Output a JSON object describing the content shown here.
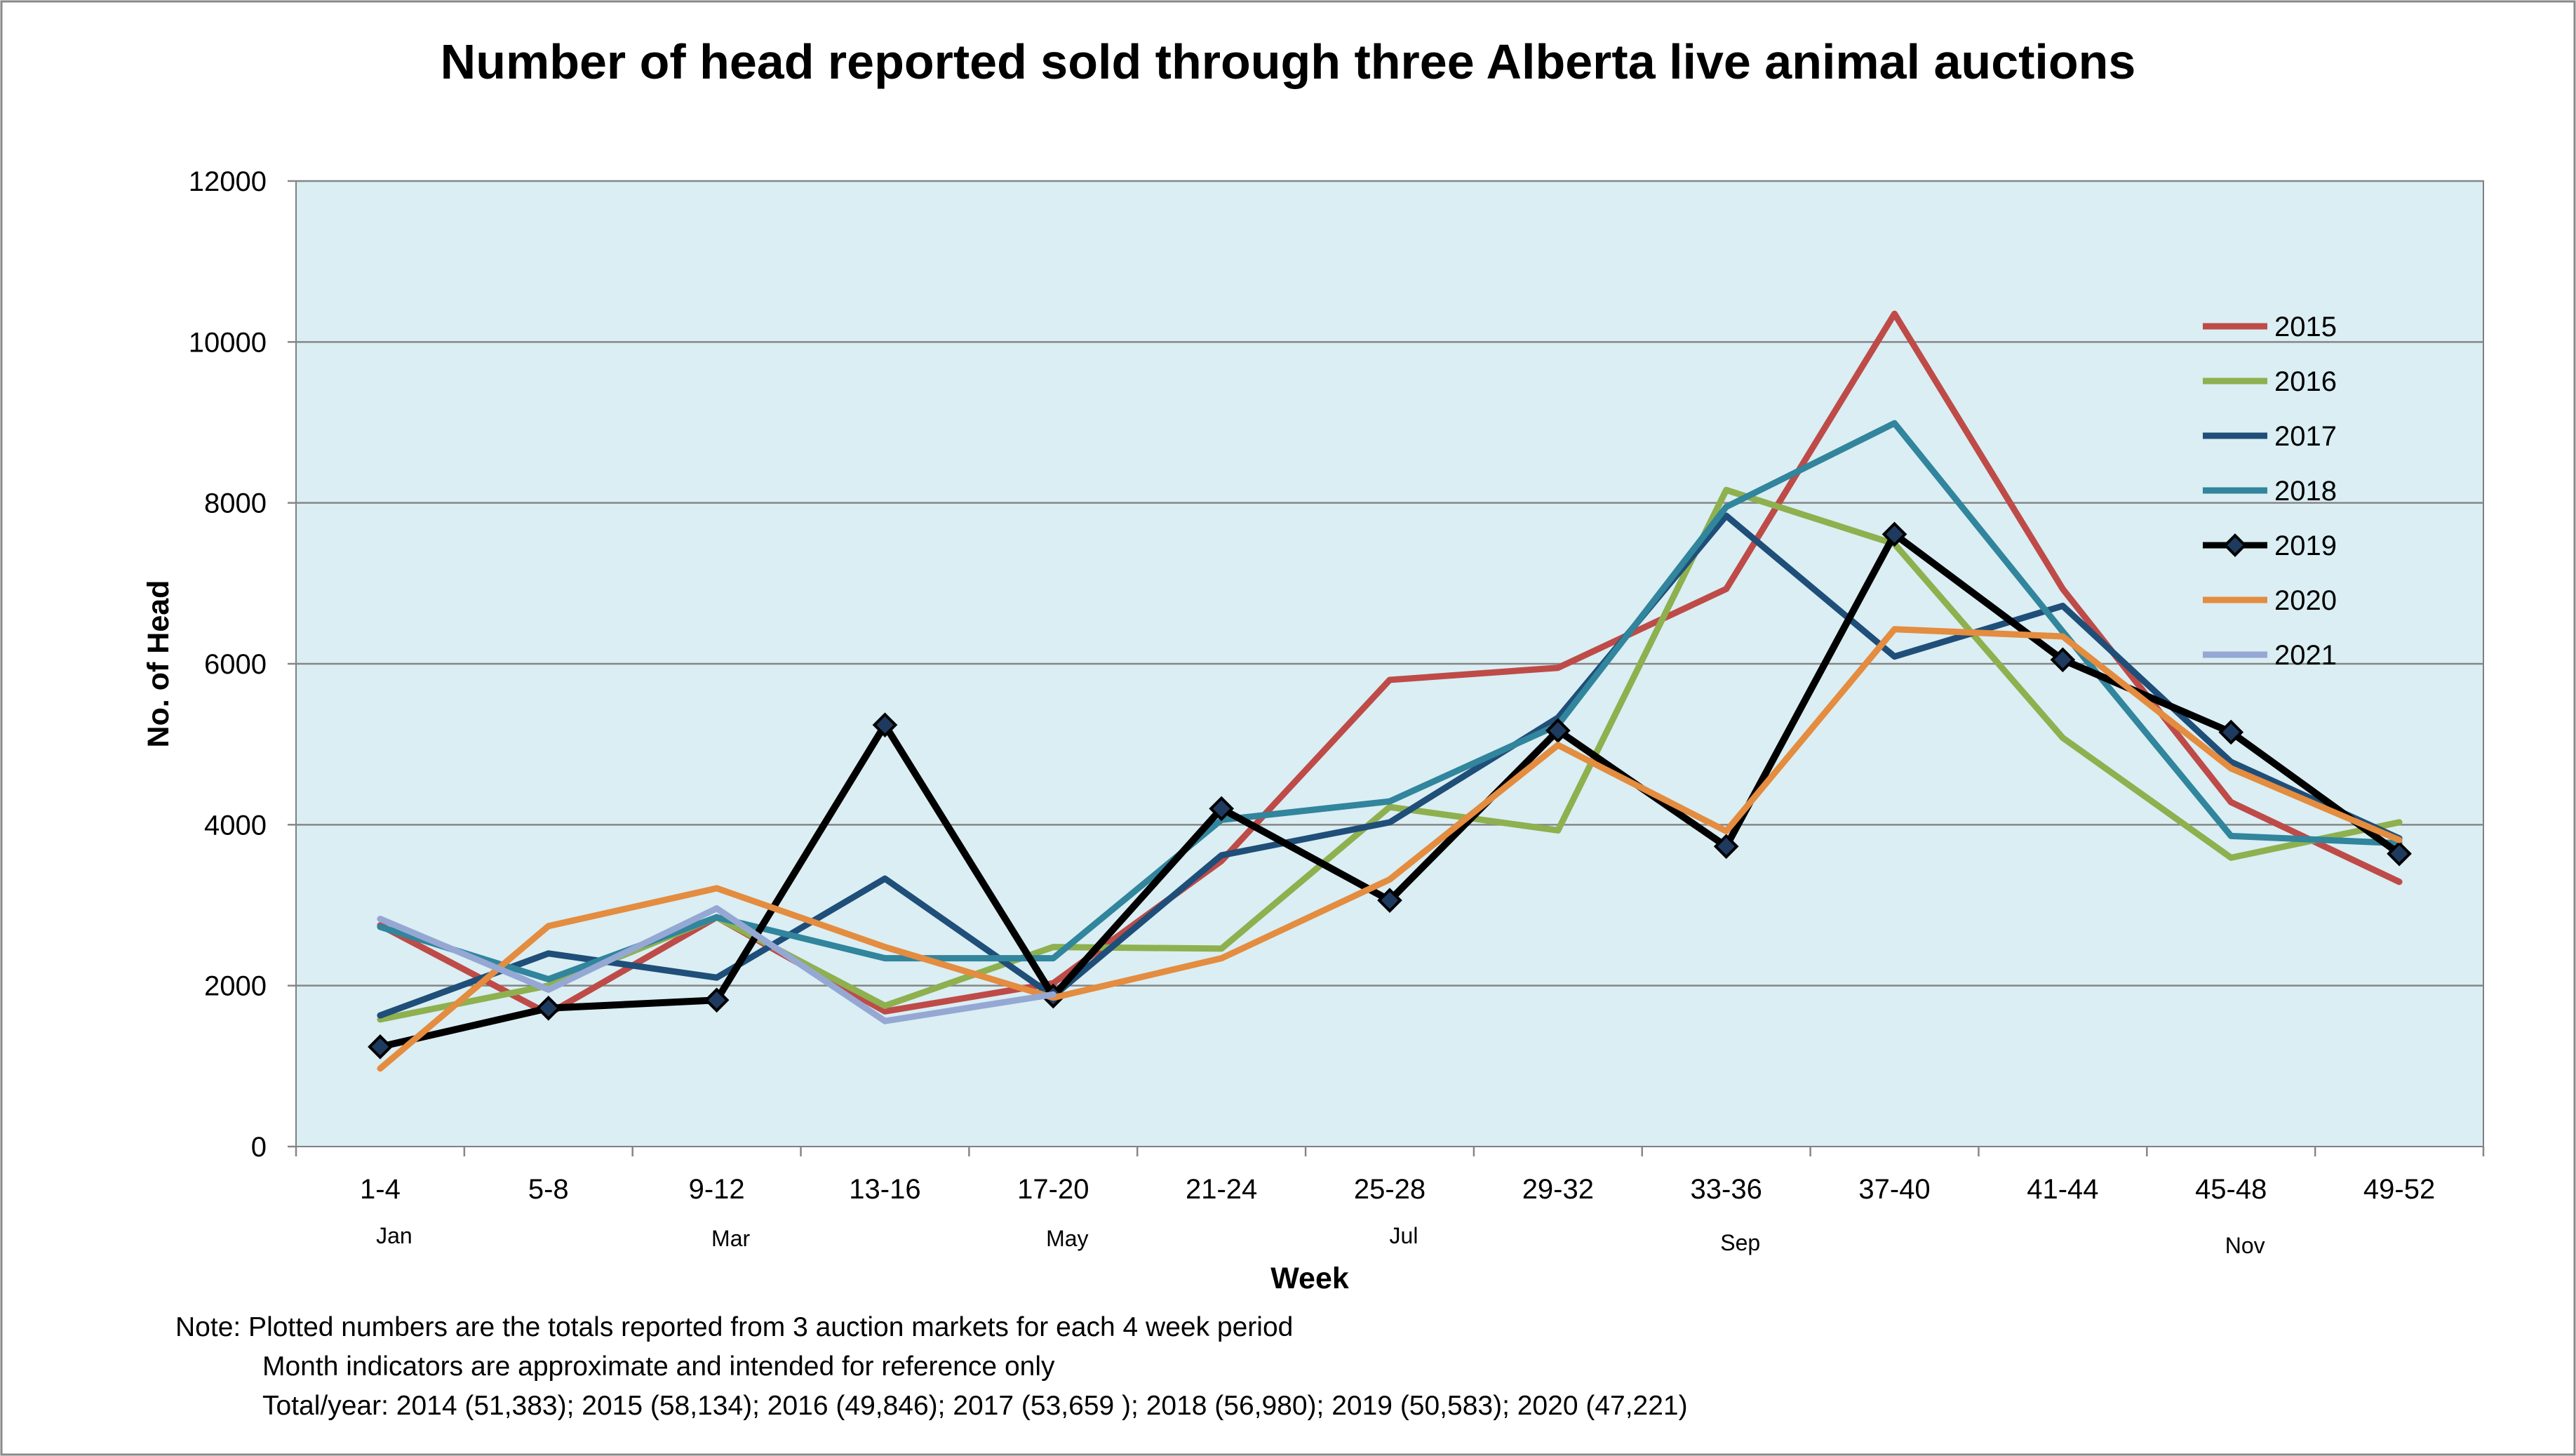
{
  "chart_data": {
    "type": "line",
    "title": "Number of head reported sold through three Alberta live animal auctions",
    "xlabel": "Week",
    "ylabel": "No. of Head",
    "categories": [
      "1-4",
      "5-8",
      "9-12",
      "13-16",
      "17-20",
      "21-24",
      "25-28",
      "29-32",
      "33-36",
      "37-40",
      "41-44",
      "45-48",
      "49-52"
    ],
    "month_labels": [
      {
        "label": "Jan",
        "at": "1-4"
      },
      {
        "label": "Mar",
        "at": "9-12"
      },
      {
        "label": "May",
        "at": "17-20"
      },
      {
        "label": "Jul",
        "at": "25-28"
      },
      {
        "label": "Sep",
        "at": "33-36"
      },
      {
        "label": "Nov",
        "at": "45-48"
      }
    ],
    "ylim": [
      0,
      12000
    ],
    "yticks": [
      0,
      2000,
      4000,
      6000,
      8000,
      10000,
      12000
    ],
    "grid": true,
    "legend_position": "right",
    "plot_background": "#DAEEF3",
    "series": [
      {
        "name": "2015",
        "color": "#BE4B48",
        "markers": false,
        "values": [
          2750,
          1650,
          2850,
          1680,
          2030,
          3550,
          5800,
          5950,
          6930,
          10350,
          6930,
          4280,
          3290
        ]
      },
      {
        "name": "2016",
        "color": "#8EB04F",
        "markers": false,
        "values": [
          1580,
          2000,
          2850,
          1750,
          2480,
          2460,
          4220,
          3930,
          8160,
          7490,
          5080,
          3590,
          4030
        ]
      },
      {
        "name": "2017",
        "color": "#1F4E79",
        "markers": false,
        "values": [
          1630,
          2400,
          2100,
          3330,
          1870,
          3620,
          4030,
          5330,
          7840,
          6090,
          6720,
          4780,
          3830
        ]
      },
      {
        "name": "2018",
        "color": "#31859C",
        "markers": false,
        "values": [
          2730,
          2080,
          2850,
          2340,
          2340,
          4060,
          4290,
          5240,
          7950,
          8990,
          6400,
          3860,
          3770
        ]
      },
      {
        "name": "2019",
        "color": "#000000",
        "markers": true,
        "values": [
          1240,
          1720,
          1820,
          5240,
          1870,
          4200,
          3060,
          5170,
          3730,
          7610,
          6050,
          5150,
          3640
        ]
      },
      {
        "name": "2020",
        "color": "#E48C3F",
        "markers": false,
        "values": [
          970,
          2740,
          3210,
          2480,
          1850,
          2340,
          3320,
          4990,
          3920,
          6430,
          6340,
          4700,
          3810
        ]
      },
      {
        "name": "2021",
        "color": "#95A8D4",
        "markers": false,
        "values": [
          2830,
          1950,
          2960,
          1560,
          1890,
          null,
          null,
          null,
          null,
          null,
          null,
          null,
          null
        ]
      }
    ]
  },
  "notes": {
    "line1": "Note:  Plotted numbers are the totals reported from 3 auction markets for each 4 week period",
    "line2": "Month indicators are approximate and intended for reference only",
    "line3": "Total/year: 2014 (51,383);  2015 (58,134);  2016 (49,846); 2017 (53,659 ); 2018 (56,980); 2019 (50,583); 2020 (47,221)"
  }
}
